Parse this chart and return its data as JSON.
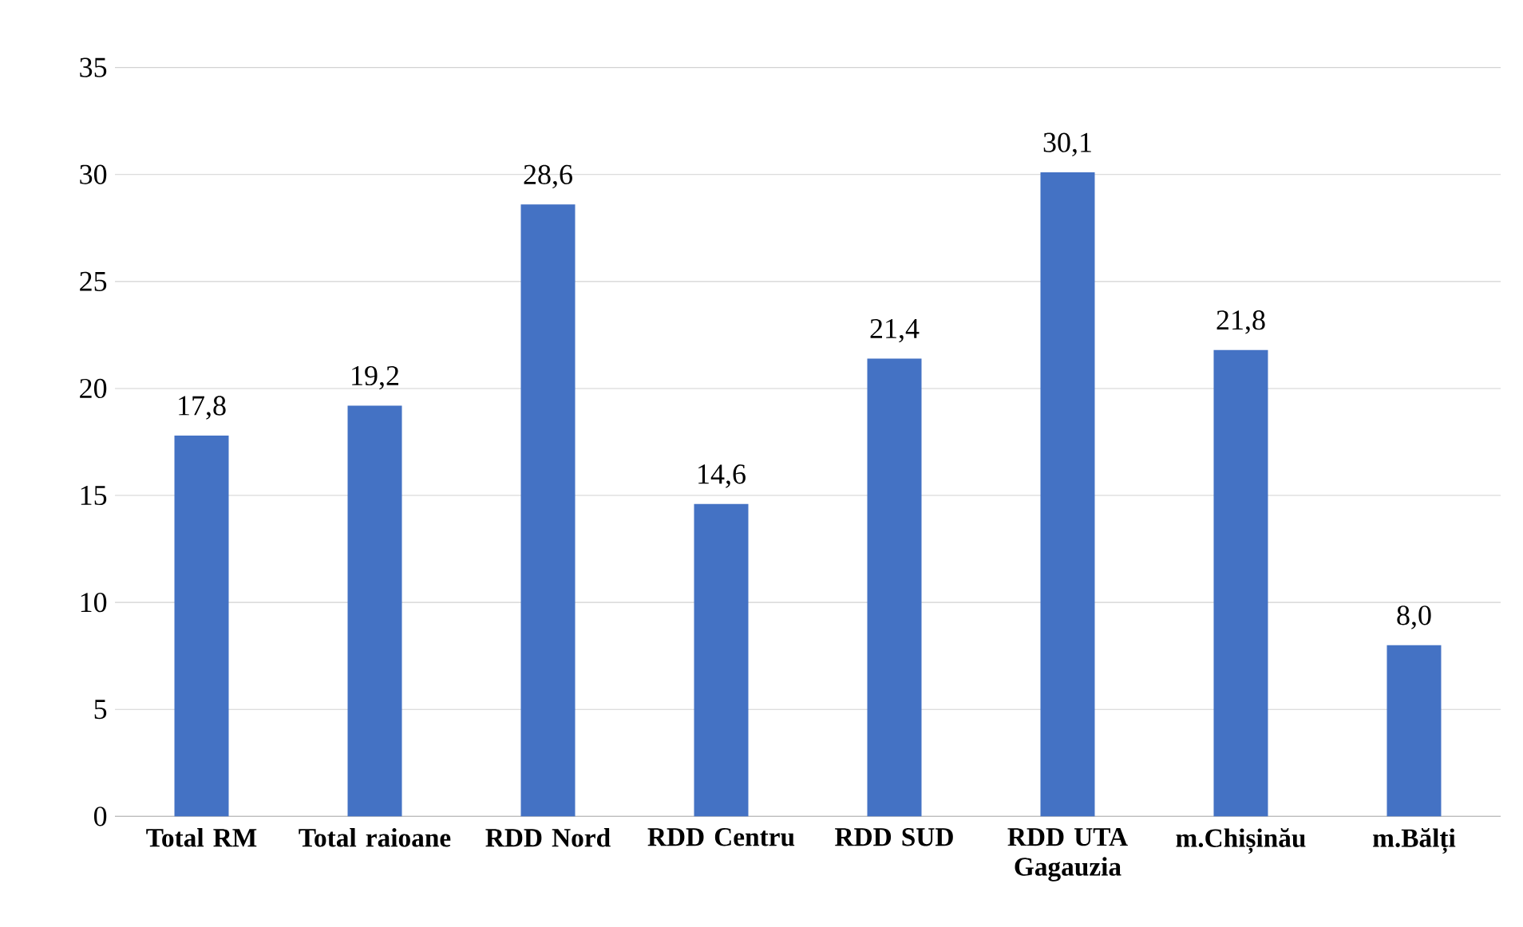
{
  "chart_data": {
    "type": "bar",
    "categories": [
      "Total RM",
      "Total raioane",
      "RDD Nord",
      "RDD Centru",
      "RDD SUD",
      "RDD UTA Gagauzia",
      "m.Chișinău",
      "m.Bălți"
    ],
    "values": [
      17.8,
      19.2,
      28.6,
      14.6,
      21.4,
      30.1,
      21.8,
      8.0
    ],
    "value_labels": [
      "17,8",
      "19,2",
      "28,6",
      "14,6",
      "21,4",
      "30,1",
      "21,8",
      "8,0"
    ],
    "color": "#4472c4",
    "ylim": [
      0,
      35
    ],
    "yticks": [
      0,
      5,
      10,
      15,
      20,
      25,
      30,
      35
    ],
    "grid": "y"
  }
}
